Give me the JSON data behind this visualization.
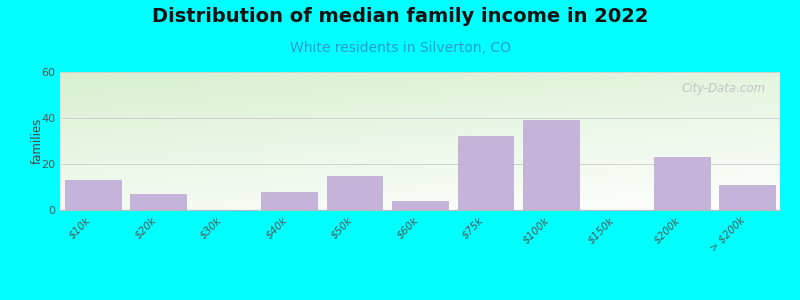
{
  "title": "Distribution of median family income in 2022",
  "subtitle": "White residents in Silverton, CO",
  "ylabel": "families",
  "background_color": "#00FFFF",
  "plot_bg_topleft": "#d8f0d0",
  "plot_bg_bottomright": "#f8fff8",
  "plot_bg_white": "#ffffff",
  "bar_color": "#c5b4d9",
  "bar_edge_color": "#b8a8cc",
  "categories": [
    "$10k",
    "$20k",
    "$30k",
    "$40k",
    "$50k",
    "$60k",
    "$75k",
    "$100k",
    "$150k",
    "$200k",
    "> $200k"
  ],
  "values": [
    13,
    7,
    0,
    8,
    15,
    4,
    32,
    39,
    0,
    23,
    11
  ],
  "ylim": [
    0,
    60
  ],
  "yticks": [
    0,
    20,
    40,
    60
  ],
  "title_fontsize": 14,
  "subtitle_fontsize": 10,
  "watermark": "City-Data.com"
}
